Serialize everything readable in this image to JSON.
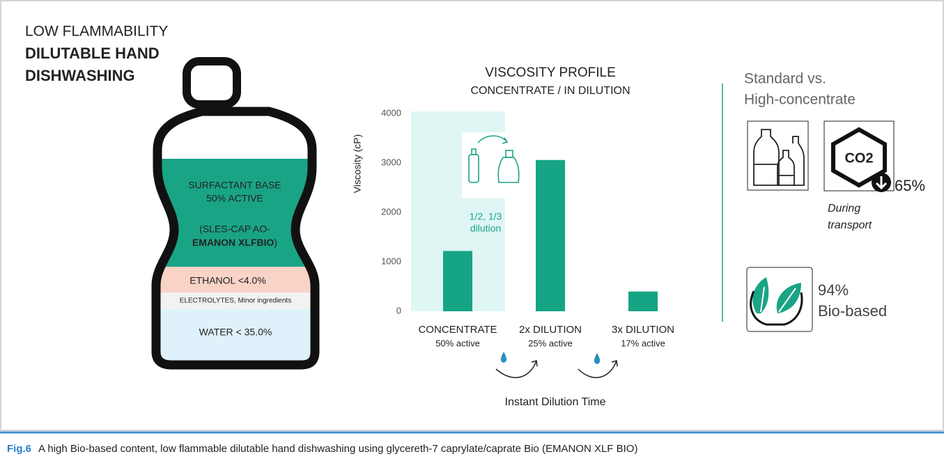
{
  "figure": {
    "title_lines": [
      "LOW FLAMMABILITY",
      "DILUTABLE HAND",
      "DISHWASHING"
    ],
    "bottle_layers": {
      "surfactant": [
        "SURFACTANT BASE",
        "50% ACTIVE"
      ],
      "surfactant_detail": [
        "(SLES-CAP AO-",
        "EMANON XLFBIO",
        ")"
      ],
      "ethanol": "ETHANOL <4.0%",
      "electrolytes": "ELECTROLYTES, Minor ingredients",
      "water": "WATER < 35.0%"
    }
  },
  "chart_data": {
    "type": "bar",
    "title": "VISCOSITY PROFILE",
    "subtitle": "CONCENTRATE / IN DILUTION",
    "y_label": "Viscosity (cP)",
    "x_label": "Instant Dilution Time",
    "categories": [
      "CONCENTRATE",
      "2x DILUTION",
      "3x DILUTION"
    ],
    "category_notes": [
      "50% active",
      "25% active",
      "17% active"
    ],
    "values": [
      1220,
      3060,
      400
    ],
    "color": "#16a584",
    "ylim": [
      0,
      4000
    ],
    "yticks": [
      0,
      1000,
      2000,
      3000,
      4000
    ],
    "annotation": [
      "1/2, 1/3",
      "dilution"
    ]
  },
  "sidebar": {
    "heading": [
      "Standard vs.",
      "High-concentrate"
    ],
    "co2_icon": "CO2",
    "co2_value": "65%",
    "co2_note": [
      "During",
      "transport"
    ],
    "bio_value": "94%",
    "bio_label": "Bio-based"
  },
  "caption": {
    "label": "Fig.6",
    "text": "A high Bio-based content, low flammable dilutable hand dishwashing using glycereth-7 caprylate/caprate Bio (EMANON XLF BIO)"
  }
}
